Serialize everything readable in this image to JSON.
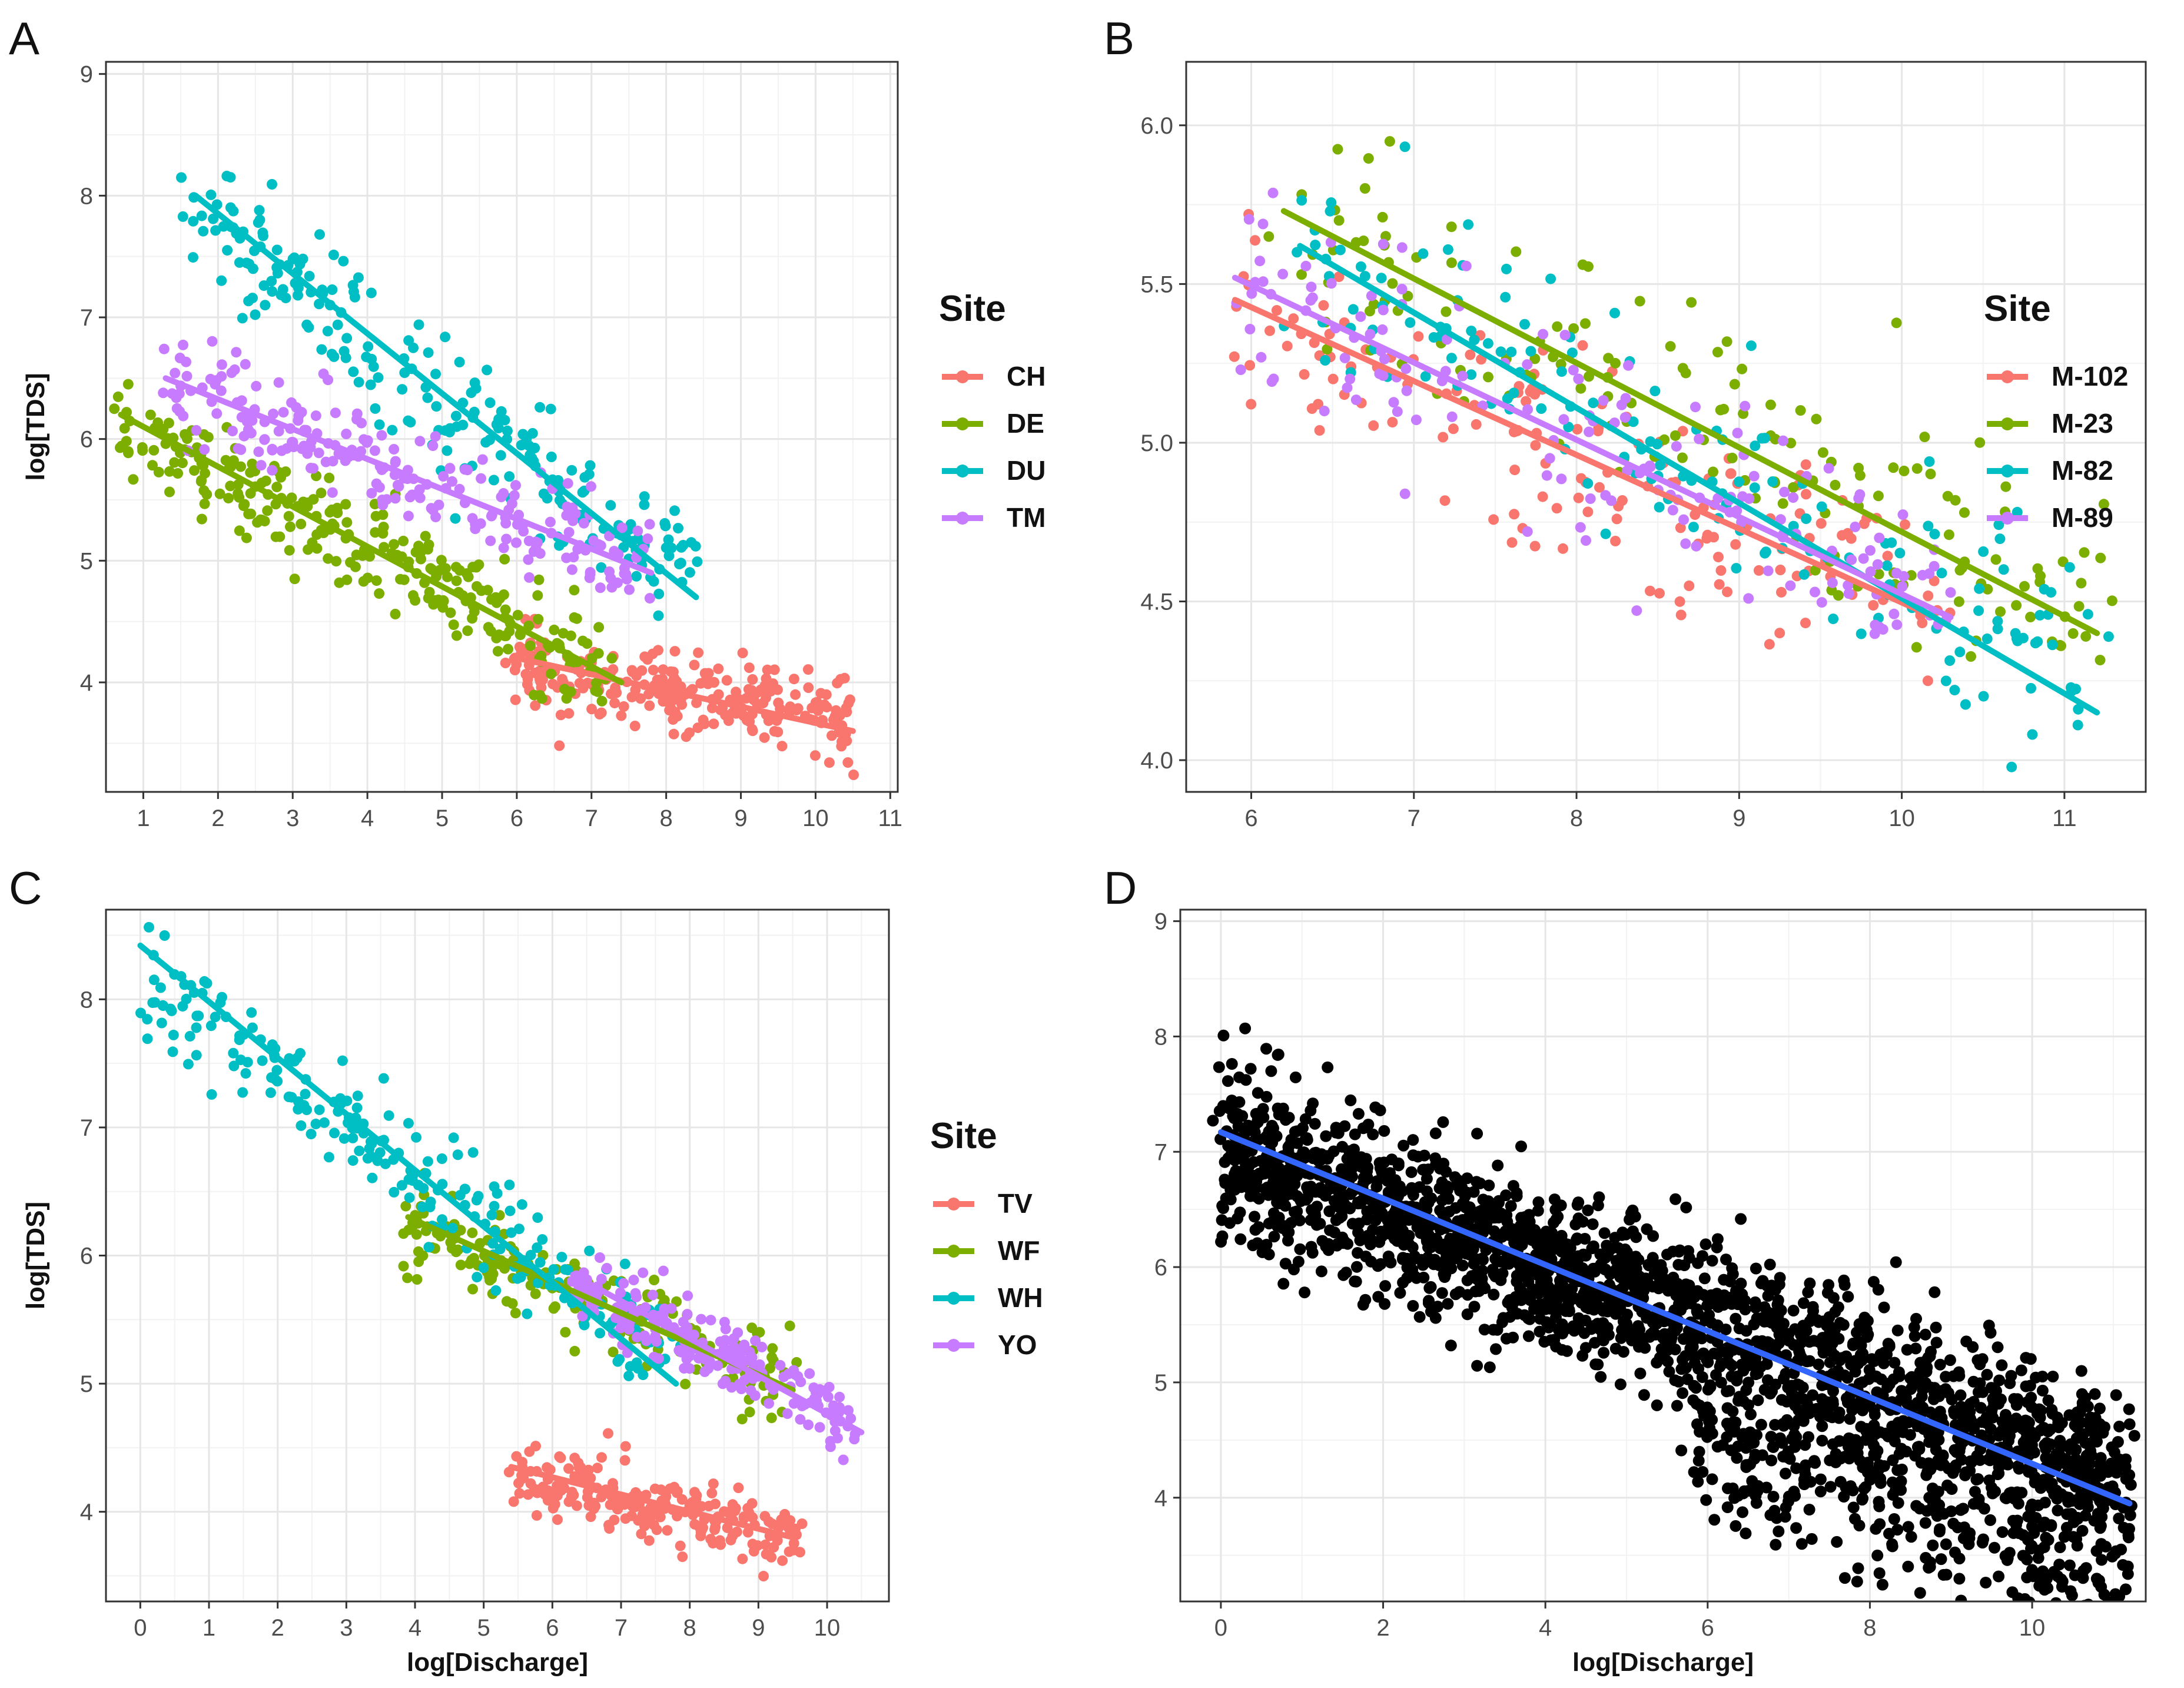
{
  "chart_data": [
    {
      "panel": "A",
      "type": "scatter",
      "xlabel": "",
      "ylabel": "log[TDS]",
      "xlim": [
        0.5,
        11.1
      ],
      "ylim": [
        3.1,
        9.1
      ],
      "xticks": [
        1,
        2,
        3,
        4,
        5,
        6,
        7,
        8,
        9,
        10,
        11
      ],
      "yticks": [
        4,
        5,
        6,
        7,
        8,
        9
      ],
      "grid": true,
      "legend_title": "Site",
      "legend_position": "right",
      "series": [
        {
          "name": "CH",
          "color": "#F8766D",
          "trend": {
            "x": [
              6.0,
              10.5
            ],
            "y": [
              4.2,
              3.6
            ]
          },
          "x_range": [
            6.0,
            10.5
          ],
          "y_center": [
            4.15,
            3.7
          ],
          "spread": 0.3,
          "points": 250
        },
        {
          "name": "DE",
          "color": "#7CAE00",
          "trend": {
            "x": [
              0.7,
              7.4
            ],
            "y": [
              6.2,
              4.0
            ]
          },
          "x_range": [
            0.7,
            7.4
          ],
          "y_center": [
            6.15,
            4.05
          ],
          "spread": 0.35,
          "points": 280
        },
        {
          "name": "DU",
          "color": "#00BFC4",
          "trend": {
            "x": [
              1.7,
              8.4
            ],
            "y": [
              8.0,
              4.7
            ]
          },
          "x_range": [
            1.7,
            8.4
          ],
          "y_center": [
            7.9,
            4.8
          ],
          "spread": 0.5,
          "points": 230
        },
        {
          "name": "TM",
          "color": "#C77CFF",
          "trend": {
            "x": [
              1.3,
              7.8
            ],
            "y": [
              6.5,
              4.9
            ]
          },
          "x_range": [
            1.3,
            7.8
          ],
          "y_center": [
            6.45,
            4.95
          ],
          "spread": 0.35,
          "points": 230
        }
      ]
    },
    {
      "panel": "B",
      "type": "scatter",
      "xlabel": "",
      "ylabel": "",
      "xlim": [
        5.6,
        11.5
      ],
      "ylim": [
        3.9,
        6.2
      ],
      "xticks": [
        6,
        7,
        8,
        9,
        10,
        11
      ],
      "yticks": [
        4.0,
        4.5,
        5.0,
        5.5,
        6.0
      ],
      "ytick_labels": [
        "4.0",
        "4.5",
        "5.0",
        "5.5",
        "6.0"
      ],
      "grid": true,
      "legend_title": "Site",
      "legend_position": "right",
      "series": [
        {
          "name": "M-102",
          "color": "#F8766D",
          "trend": {
            "x": [
              5.9,
              10.2
            ],
            "y": [
              5.45,
              4.45
            ]
          },
          "x_range": [
            5.9,
            10.2
          ],
          "y_center": [
            5.4,
            4.5
          ],
          "spread": 0.28,
          "points": 160
        },
        {
          "name": "M-23",
          "color": "#7CAE00",
          "trend": {
            "x": [
              6.2,
              11.2
            ],
            "y": [
              5.73,
              4.4
            ]
          },
          "x_range": [
            6.2,
            11.3
          ],
          "y_center": [
            5.7,
            4.45
          ],
          "spread": 0.3,
          "points": 160
        },
        {
          "name": "M-82",
          "color": "#00BFC4",
          "trend": {
            "x": [
              6.3,
              11.2
            ],
            "y": [
              5.62,
              4.15
            ]
          },
          "x_range": [
            6.3,
            11.2
          ],
          "y_center": [
            5.6,
            4.25
          ],
          "spread": 0.3,
          "points": 160
        },
        {
          "name": "M-89",
          "color": "#C77CFF",
          "trend": {
            "x": [
              5.9,
              10.3
            ],
            "y": [
              5.52,
              4.45
            ]
          },
          "x_range": [
            5.9,
            10.3
          ],
          "y_center": [
            5.5,
            4.5
          ],
          "spread": 0.28,
          "points": 160
        }
      ]
    },
    {
      "panel": "C",
      "type": "scatter",
      "xlabel": "log[Discharge]",
      "ylabel": "log[TDS]",
      "xlim": [
        -0.5,
        10.9
      ],
      "ylim": [
        3.3,
        8.7
      ],
      "xticks": [
        0,
        1,
        2,
        3,
        4,
        5,
        6,
        7,
        8,
        9,
        10
      ],
      "yticks": [
        4,
        5,
        6,
        7,
        8
      ],
      "grid": true,
      "legend_title": "Site",
      "legend_position": "right",
      "series": [
        {
          "name": "TV",
          "color": "#F8766D",
          "trend": {
            "x": [
              5.4,
              9.5
            ],
            "y": [
              4.35,
              3.8
            ]
          },
          "x_range": [
            5.4,
            9.6
          ],
          "y_center": [
            4.3,
            3.8
          ],
          "spread": 0.22,
          "points": 230
        },
        {
          "name": "WF",
          "color": "#7CAE00",
          "trend": {
            "x": [
              3.9,
              9.5
            ],
            "y": [
              6.3,
              4.95
            ]
          },
          "x_range": [
            3.9,
            9.5
          ],
          "y_center": [
            6.25,
            5.0
          ],
          "spread": 0.28,
          "points": 200
        },
        {
          "name": "WH",
          "color": "#00BFC4",
          "trend": {
            "x": [
              0.0,
              7.8
            ],
            "y": [
              8.42,
              5.0
            ]
          },
          "x_range": [
            0.0,
            7.8
          ],
          "y_center": [
            8.1,
            5.2
          ],
          "spread": 0.35,
          "points": 230
        },
        {
          "name": "YO",
          "color": "#C77CFF",
          "trend": {
            "x": [
              6.3,
              10.5
            ],
            "y": [
              5.85,
              4.62
            ]
          },
          "x_range": [
            6.3,
            10.4
          ],
          "y_center": [
            5.8,
            4.7
          ],
          "spread": 0.25,
          "points": 200
        }
      ]
    },
    {
      "panel": "D",
      "type": "scatter",
      "xlabel": "log[Discharge]",
      "ylabel": "",
      "xlim": [
        -0.5,
        11.4
      ],
      "ylim": [
        3.1,
        9.1
      ],
      "xticks": [
        0,
        2,
        4,
        6,
        8,
        10
      ],
      "yticks": [
        4,
        5,
        6,
        7,
        8,
        9
      ],
      "grid": true,
      "series": [
        {
          "name": "",
          "color": "#000000",
          "trend_color": "#3366FF",
          "trend": {
            "x": [
              0.0,
              11.2
            ],
            "y": [
              7.17,
              3.95
            ]
          },
          "x_range": [
            0.0,
            11.2
          ],
          "y_center": [
            7.0,
            4.2
          ],
          "spread": 0.6,
          "points": 2400
        }
      ]
    }
  ]
}
